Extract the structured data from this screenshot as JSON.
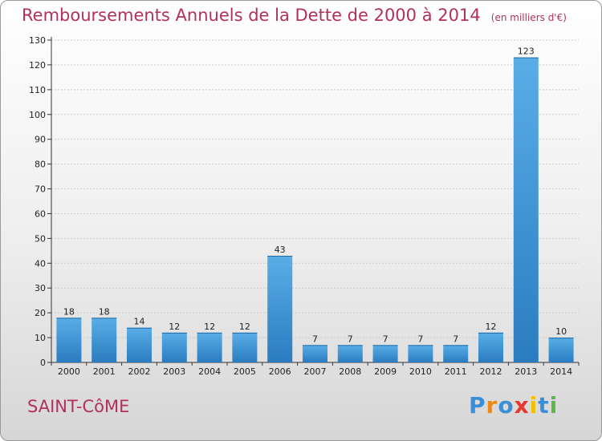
{
  "header": {
    "title": "Remboursements Annuels de la Dette de 2000 à 2014",
    "unit": "(en milliers d'€)"
  },
  "footer": {
    "commune": "SAINT-CôME",
    "brand_letters": [
      "P",
      "r",
      "o",
      "x",
      "i",
      "t",
      "i"
    ]
  },
  "colors": {
    "title": "#b03060",
    "bar_light": "#5aaee6",
    "bar_dark": "#2a7cc0",
    "grid": "#cccccc",
    "axis": "#333333",
    "brand": [
      "#3a8fd8",
      "#e98a1b",
      "#3a8fd8",
      "#e63a2e",
      "#f2c200",
      "#3a8fd8",
      "#58b848"
    ]
  },
  "chart_data": {
    "type": "bar",
    "categories": [
      "2000",
      "2001",
      "2002",
      "2003",
      "2004",
      "2005",
      "2006",
      "2007",
      "2008",
      "2009",
      "2010",
      "2011",
      "2012",
      "2013",
      "2014"
    ],
    "values": [
      18,
      18,
      14,
      12,
      12,
      12,
      43,
      7,
      7,
      7,
      7,
      7,
      12,
      123,
      10
    ],
    "title": "Remboursements Annuels de la Dette de 2000 à 2014",
    "xlabel": "",
    "ylabel": "",
    "ylim": [
      0,
      130
    ],
    "yticks": [
      0,
      10,
      20,
      30,
      40,
      50,
      60,
      70,
      80,
      90,
      100,
      110,
      120,
      130
    ],
    "grid": true
  }
}
